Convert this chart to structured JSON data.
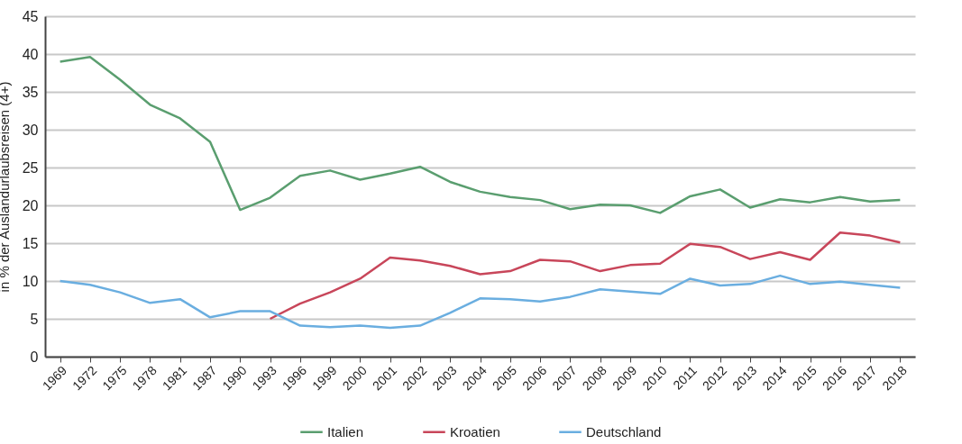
{
  "chart_data": {
    "type": "line",
    "ylabel": "in % der Auslandurlaubsreisen (4+)",
    "categories": [
      "1969",
      "1972",
      "1975",
      "1978",
      "1981",
      "1987",
      "1990",
      "1993",
      "1996",
      "1999",
      "2000",
      "2001",
      "2002",
      "2003",
      "2004",
      "2005",
      "2006",
      "2007",
      "2008",
      "2009",
      "2010",
      "2011",
      "2012",
      "2013",
      "2014",
      "2015",
      "2016",
      "2017",
      "2018"
    ],
    "series": [
      {
        "name": "Italien",
        "color": "#5a9e6f",
        "values": [
          39.0,
          39.6,
          36.6,
          33.3,
          31.5,
          28.4,
          19.4,
          21.0,
          23.9,
          24.6,
          23.4,
          24.2,
          25.1,
          23.1,
          21.8,
          21.1,
          20.7,
          19.5,
          20.1,
          20.0,
          19.0,
          21.2,
          22.1,
          19.7,
          20.8,
          20.4,
          21.1,
          20.5,
          20.7
        ]
      },
      {
        "name": "Kroatien",
        "color": "#c8465a",
        "values": [
          null,
          null,
          null,
          null,
          null,
          null,
          null,
          5.0,
          7.0,
          8.5,
          10.3,
          13.1,
          12.7,
          12.0,
          10.9,
          11.3,
          12.8,
          12.6,
          11.3,
          12.1,
          12.3,
          14.9,
          14.5,
          12.9,
          13.8,
          12.8,
          16.4,
          16.0,
          15.1
        ]
      },
      {
        "name": "Deutschland",
        "color": "#6aaee0",
        "values": [
          10.0,
          9.5,
          8.5,
          7.1,
          7.6,
          5.2,
          6.0,
          6.0,
          4.1,
          3.9,
          4.1,
          3.8,
          4.1,
          5.8,
          7.7,
          7.6,
          7.3,
          7.9,
          8.9,
          8.6,
          8.3,
          10.3,
          9.4,
          9.6,
          10.7,
          9.6,
          9.9,
          9.5,
          9.1
        ]
      }
    ],
    "ylim": [
      0,
      45
    ],
    "yticks": [
      0,
      5,
      10,
      15,
      20,
      25,
      30,
      35,
      40,
      45
    ],
    "grid": "y",
    "legend": "bottom",
    "line_style": "solid",
    "marker": "none"
  }
}
